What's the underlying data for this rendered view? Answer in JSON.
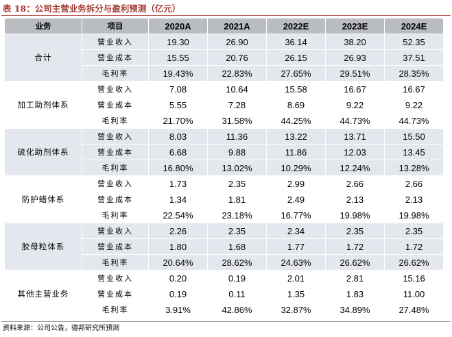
{
  "title": "表 18：公司主营业务拆分与盈利预测（亿元）",
  "source": "资料来源：公司公告，德邦研究所预测",
  "header": {
    "business": "业务",
    "item": "项目",
    "years": [
      "2020A",
      "2021A",
      "2022E",
      "2023E",
      "2024E"
    ]
  },
  "groups": [
    {
      "name": "合计",
      "rows": [
        {
          "item": "营业收入",
          "values": [
            "19.30",
            "26.90",
            "36.14",
            "38.20",
            "52.35"
          ]
        },
        {
          "item": "营业成本",
          "values": [
            "15.55",
            "20.76",
            "26.15",
            "26.93",
            "37.51"
          ]
        },
        {
          "item": "毛利率",
          "values": [
            "19.43%",
            "22.83%",
            "27.65%",
            "29.51%",
            "28.35%"
          ]
        }
      ]
    },
    {
      "name": "加工助剂体系",
      "rows": [
        {
          "item": "营业收入",
          "values": [
            "7.08",
            "10.64",
            "15.58",
            "16.67",
            "16.67"
          ]
        },
        {
          "item": "营业成本",
          "values": [
            "5.55",
            "7.28",
            "8.69",
            "9.22",
            "9.22"
          ]
        },
        {
          "item": "毛利率",
          "values": [
            "21.70%",
            "31.58%",
            "44.25%",
            "44.73%",
            "44.73%"
          ]
        }
      ]
    },
    {
      "name": "硫化助剂体系",
      "rows": [
        {
          "item": "营业收入",
          "values": [
            "8.03",
            "11.36",
            "13.22",
            "13.71",
            "15.50"
          ]
        },
        {
          "item": "营业成本",
          "values": [
            "6.68",
            "9.88",
            "11.86",
            "12.03",
            "13.45"
          ]
        },
        {
          "item": "毛利率",
          "values": [
            "16.80%",
            "13.02%",
            "10.29%",
            "12.24%",
            "13.28%"
          ]
        }
      ]
    },
    {
      "name": "防护蜡体系",
      "rows": [
        {
          "item": "营业收入",
          "values": [
            "1.73",
            "2.35",
            "2.99",
            "2.66",
            "2.66"
          ]
        },
        {
          "item": "营业成本",
          "values": [
            "1.34",
            "1.81",
            "2.49",
            "2.13",
            "2.13"
          ]
        },
        {
          "item": "毛利率",
          "values": [
            "22.54%",
            "23.18%",
            "16.77%",
            "19.98%",
            "19.98%"
          ]
        }
      ]
    },
    {
      "name": "胶母粒体系",
      "rows": [
        {
          "item": "营业收入",
          "values": [
            "2.26",
            "2.35",
            "2.34",
            "2.35",
            "2.35"
          ]
        },
        {
          "item": "营业成本",
          "values": [
            "1.80",
            "1.68",
            "1.77",
            "1.72",
            "1.72"
          ]
        },
        {
          "item": "毛利率",
          "values": [
            "20.64%",
            "28.62%",
            "24.63%",
            "26.62%",
            "26.62%"
          ]
        }
      ]
    },
    {
      "name": "其他主营业务",
      "rows": [
        {
          "item": "营业收入",
          "values": [
            "0.20",
            "0.19",
            "2.01",
            "2.81",
            "15.16"
          ]
        },
        {
          "item": "营业成本",
          "values": [
            "0.19",
            "0.11",
            "1.35",
            "1.83",
            "11.00"
          ]
        },
        {
          "item": "毛利率",
          "values": [
            "3.91%",
            "42.86%",
            "32.87%",
            "34.89%",
            "27.48%"
          ]
        }
      ]
    }
  ]
}
